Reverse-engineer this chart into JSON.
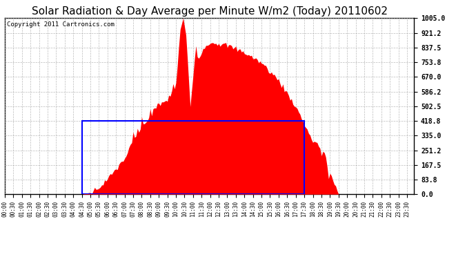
{
  "title": "Solar Radiation & Day Average per Minute W/m2 (Today) 20110602",
  "copyright": "Copyright 2011 Cartronics.com",
  "ymin": 0.0,
  "ymax": 1005.0,
  "yticks": [
    0.0,
    83.8,
    167.5,
    251.2,
    335.0,
    418.8,
    502.5,
    586.2,
    670.0,
    753.8,
    837.5,
    921.2,
    1005.0
  ],
  "fill_color": "red",
  "avg_box_color": "blue",
  "avg_value": 418.8,
  "bg_color": "white",
  "grid_color": "#aaaaaa",
  "title_fontsize": 11,
  "copyright_fontsize": 6.5,
  "xtick_fontsize": 5.5,
  "ytick_fontsize": 7
}
